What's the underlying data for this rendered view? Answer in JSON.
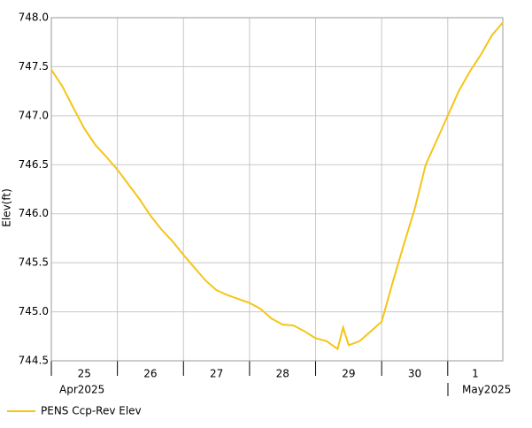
{
  "chart_data": {
    "type": "line",
    "y_label": "Elev(ft)",
    "x_periods": [
      "Apr2025",
      "May2025"
    ],
    "ylim": [
      744.5,
      748.0
    ],
    "yticks": [
      744.5,
      {
        "value": 745,
        "label": "745.0"
      },
      745.5,
      {
        "value": 746,
        "label": "746.0"
      },
      746.5,
      {
        "value": 747,
        "label": "747.0"
      },
      747.5,
      {
        "value": 748,
        "label": "748.0"
      }
    ],
    "xlim": [
      "2025-04-25T00:00",
      "2025-05-01T20:00"
    ],
    "xticks": [
      {
        "value": "2025-04-25T00:00",
        "label": "25"
      },
      {
        "value": "2025-04-26T00:00",
        "label": "26"
      },
      {
        "value": "2025-04-27T00:00",
        "label": "27"
      },
      {
        "value": "2025-04-28T00:00",
        "label": "28"
      },
      {
        "value": "2025-04-29T00:00",
        "label": "29"
      },
      {
        "value": "2025-04-30T00:00",
        "label": "30"
      },
      {
        "value": "2025-05-01T00:00",
        "label": "1"
      }
    ],
    "grid": true,
    "x": [
      "2025-04-25T00:00",
      "2025-04-25T04:00",
      "2025-04-25T08:00",
      "2025-04-25T12:00",
      "2025-04-25T16:00",
      "2025-04-25T20:00",
      "2025-04-26T00:00",
      "2025-04-26T04:00",
      "2025-04-26T08:00",
      "2025-04-26T12:00",
      "2025-04-26T16:00",
      "2025-04-26T20:00",
      "2025-04-27T00:00",
      "2025-04-27T04:00",
      "2025-04-27T08:00",
      "2025-04-27T12:00",
      "2025-04-27T16:00",
      "2025-04-27T20:00",
      "2025-04-28T00:00",
      "2025-04-28T04:00",
      "2025-04-28T08:00",
      "2025-04-28T12:00",
      "2025-04-28T16:00",
      "2025-04-28T20:00",
      "2025-04-29T00:00",
      "2025-04-29T04:00",
      "2025-04-29T08:00",
      "2025-04-29T10:00",
      "2025-04-29T12:00",
      "2025-04-29T16:00",
      "2025-04-29T20:00",
      "2025-04-30T00:00",
      "2025-04-30T04:00",
      "2025-04-30T08:00",
      "2025-04-30T12:00",
      "2025-04-30T16:00",
      "2025-04-30T20:00",
      "2025-05-01T00:00",
      "2025-05-01T04:00",
      "2025-05-01T08:00",
      "2025-05-01T12:00",
      "2025-05-01T16:00",
      "2025-05-01T20:00"
    ],
    "series": [
      {
        "name": "PENS Ccp-Rev Elev",
        "color": "#f5c518",
        "values": [
          747.47,
          747.3,
          747.08,
          746.87,
          746.7,
          746.58,
          746.45,
          746.3,
          746.15,
          745.98,
          745.84,
          745.72,
          745.58,
          745.45,
          745.32,
          745.22,
          745.17,
          745.13,
          745.09,
          745.03,
          744.93,
          744.87,
          744.86,
          744.8,
          744.73,
          744.7,
          744.62,
          744.84,
          744.66,
          744.7,
          744.8,
          744.9,
          745.3,
          745.68,
          746.05,
          746.5,
          746.75,
          747.0,
          747.25,
          747.45,
          747.62,
          747.82,
          747.95
        ]
      }
    ]
  }
}
